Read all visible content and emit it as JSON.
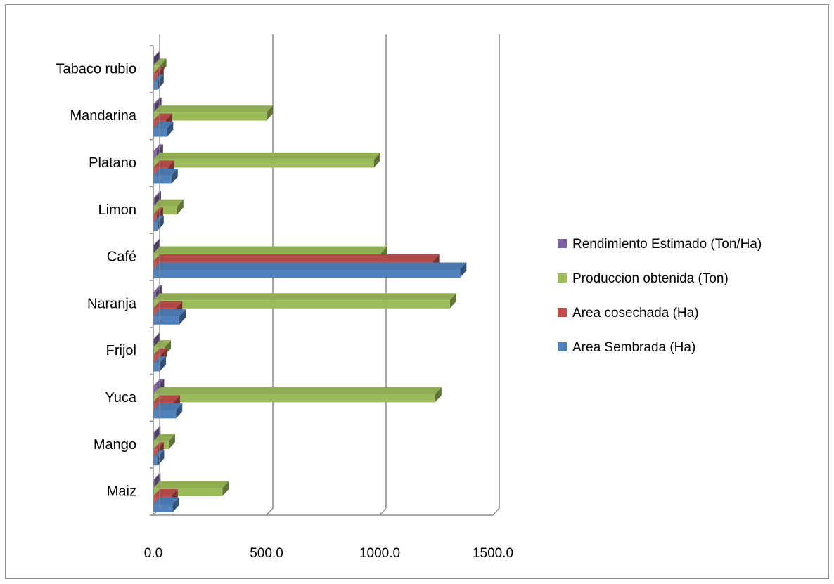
{
  "chart_data": {
    "type": "bar",
    "orientation": "horizontal",
    "categories": [
      "Maiz",
      "Mango",
      "Yuca",
      "Frijol",
      "Naranja",
      "Café",
      "Limon",
      "Platano",
      "Mandarina",
      "Tabaco rubio"
    ],
    "series": [
      {
        "name": "Area Sembrada (Ha)",
        "color": "#4f81bd",
        "values": [
          85,
          20,
          100,
          28,
          115,
          1355,
          18,
          80,
          60,
          18
        ]
      },
      {
        "name": "Area cosechada (Ha)",
        "color": "#c0504d",
        "values": [
          80,
          18,
          90,
          32,
          100,
          1235,
          15,
          65,
          55,
          18
        ]
      },
      {
        "name": "Produccion obtenida (Ton)",
        "color": "#9bbb59",
        "values": [
          305,
          68,
          1245,
          50,
          1310,
          1005,
          105,
          975,
          500,
          30
        ]
      },
      {
        "name": "Rendimiento Estimado (Ton/Ha)",
        "color": "#8064a2",
        "values": [
          4,
          4,
          20,
          2,
          12,
          1,
          6,
          15,
          8,
          2
        ]
      }
    ],
    "xlim": [
      0,
      1500
    ],
    "xticks": [
      "0.0",
      "500.0",
      "1000.0",
      "1500.0"
    ],
    "xtick_values": [
      0,
      500,
      1000,
      1500
    ],
    "grid": true,
    "legend_position": "right",
    "style": "3d-clustered"
  }
}
